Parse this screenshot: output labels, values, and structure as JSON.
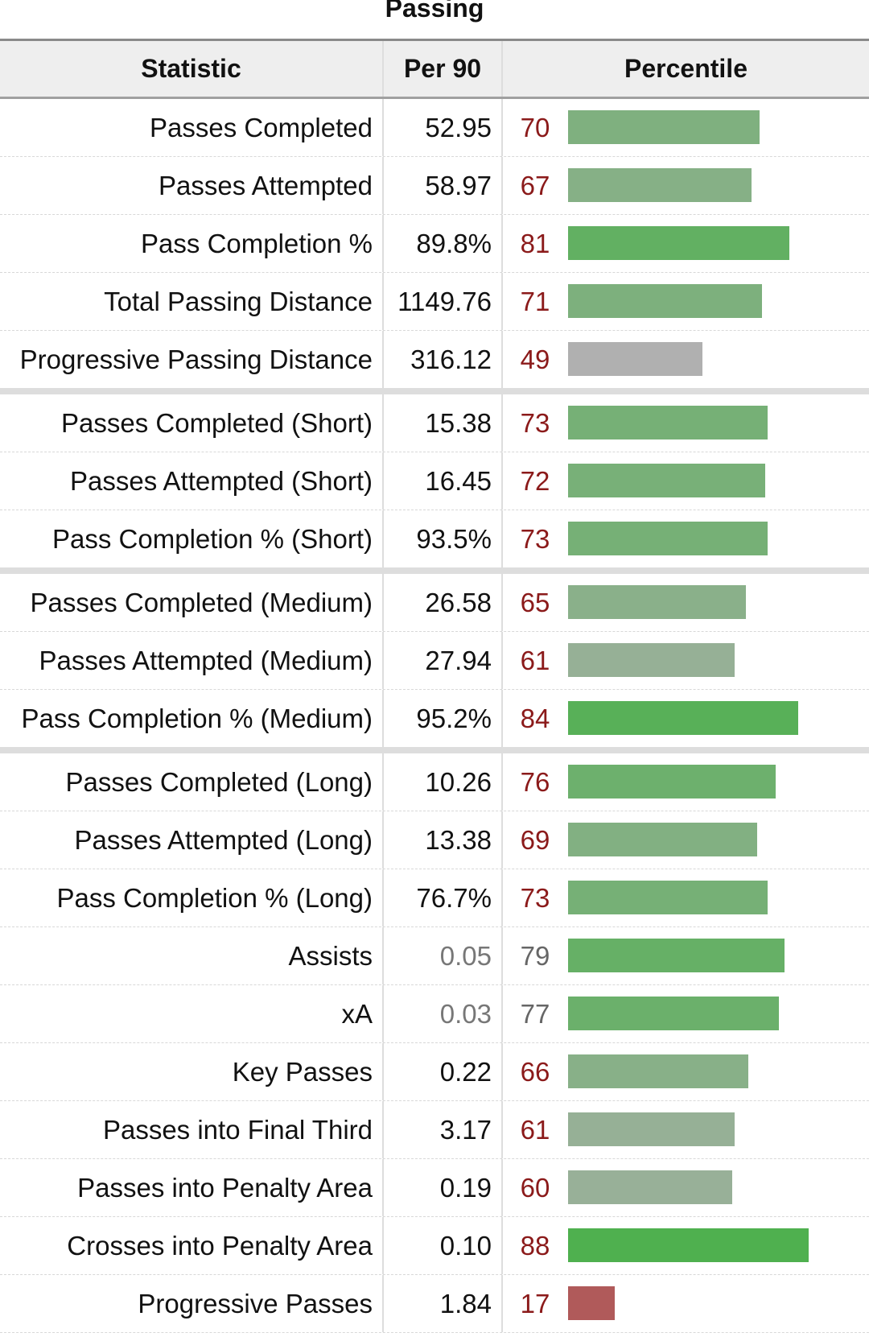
{
  "section": {
    "title": "Passing"
  },
  "headers": {
    "statistic": "Statistic",
    "per90": "Per 90",
    "percentile": "Percentile"
  },
  "colors": {
    "grey_bar": "#b0b0b0",
    "red_bar": "#b05a5a",
    "percentile_text": "#8b1a1a",
    "muted_text": "#777777"
  },
  "rows": [
    {
      "stat": "Passes Completed",
      "per90": "52.95",
      "pct": 70,
      "color": "#7fb07f"
    },
    {
      "stat": "Passes Attempted",
      "per90": "58.97",
      "pct": 67,
      "color": "#86b086"
    },
    {
      "stat": "Pass Completion %",
      "per90": "89.8%",
      "pct": 81,
      "color": "#62b062"
    },
    {
      "stat": "Total Passing Distance",
      "per90": "1149.76",
      "pct": 71,
      "color": "#7db07d"
    },
    {
      "stat": "Progressive Passing Distance",
      "per90": "316.12",
      "pct": 49,
      "color": "#b0b0b0",
      "group_end": true
    },
    {
      "stat": "Passes Completed (Short)",
      "per90": "15.38",
      "pct": 73,
      "color": "#76b076"
    },
    {
      "stat": "Passes Attempted (Short)",
      "per90": "16.45",
      "pct": 72,
      "color": "#78b078"
    },
    {
      "stat": "Pass Completion % (Short)",
      "per90": "93.5%",
      "pct": 73,
      "color": "#76b076",
      "group_end": true
    },
    {
      "stat": "Passes Completed (Medium)",
      "per90": "26.58",
      "pct": 65,
      "color": "#8ab08a"
    },
    {
      "stat": "Passes Attempted (Medium)",
      "per90": "27.94",
      "pct": 61,
      "color": "#96b096"
    },
    {
      "stat": "Pass Completion % (Medium)",
      "per90": "95.2%",
      "pct": 84,
      "color": "#58b058",
      "group_end": true
    },
    {
      "stat": "Passes Completed (Long)",
      "per90": "10.26",
      "pct": 76,
      "color": "#6db06d"
    },
    {
      "stat": "Passes Attempted (Long)",
      "per90": "13.38",
      "pct": 69,
      "color": "#82b082"
    },
    {
      "stat": "Pass Completion % (Long)",
      "per90": "76.7%",
      "pct": 73,
      "color": "#76b076"
    },
    {
      "stat": "Assists",
      "per90": "0.05",
      "pct": 79,
      "color": "#66b066",
      "muted": true
    },
    {
      "stat": "xA",
      "per90": "0.03",
      "pct": 77,
      "color": "#6bb06b",
      "muted": true
    },
    {
      "stat": "Key Passes",
      "per90": "0.22",
      "pct": 66,
      "color": "#88b088"
    },
    {
      "stat": "Passes into Final Third",
      "per90": "3.17",
      "pct": 61,
      "color": "#96b096"
    },
    {
      "stat": "Passes into Penalty Area",
      "per90": "0.19",
      "pct": 60,
      "color": "#98b098"
    },
    {
      "stat": "Crosses into Penalty Area",
      "per90": "0.10",
      "pct": 88,
      "color": "#4fb04f"
    },
    {
      "stat": "Progressive Passes",
      "per90": "1.84",
      "pct": 17,
      "color": "#b05a5a"
    }
  ]
}
